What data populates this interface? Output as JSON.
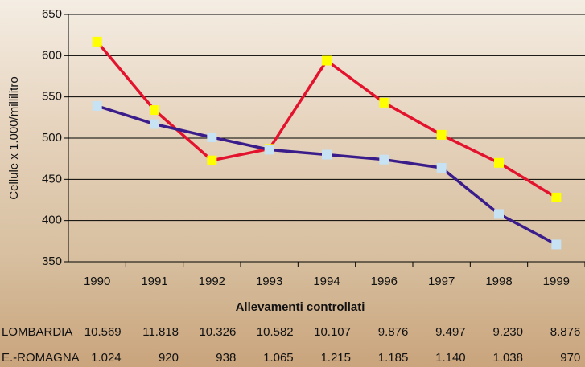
{
  "chart_data": {
    "type": "line",
    "y_label": "Cellule x 1.000/millilitro",
    "categories": [
      "1990",
      "1991",
      "1992",
      "1993",
      "1994",
      "1996",
      "1997",
      "1998",
      "1999"
    ],
    "series": [
      {
        "color": "#e3132e",
        "marker_color": "#ffff00",
        "values": [
          617,
          534,
          473,
          487,
          594,
          543,
          504,
          470,
          428
        ]
      },
      {
        "color": "#3a1d8a",
        "marker_color": "#c6e2f3",
        "values": [
          539,
          517,
          501,
          486,
          480,
          474,
          464,
          408,
          371
        ]
      }
    ],
    "ylim": [
      350,
      650
    ],
    "yticks": [
      350,
      400,
      450,
      500,
      550,
      600,
      650
    ],
    "grid": true
  },
  "table": {
    "title": "Allevamenti controllati",
    "rows": [
      [
        "LOMBARDIA",
        "10.569",
        "11.818",
        "10.326",
        "10.582",
        "10.107",
        "9.876",
        "9.497",
        "9.230",
        "8.876"
      ],
      [
        "E.-ROMAGNA",
        "1.024",
        "920",
        "938",
        "1.065",
        "1.215",
        "1.185",
        "1.140",
        "1.038",
        "970"
      ]
    ]
  }
}
